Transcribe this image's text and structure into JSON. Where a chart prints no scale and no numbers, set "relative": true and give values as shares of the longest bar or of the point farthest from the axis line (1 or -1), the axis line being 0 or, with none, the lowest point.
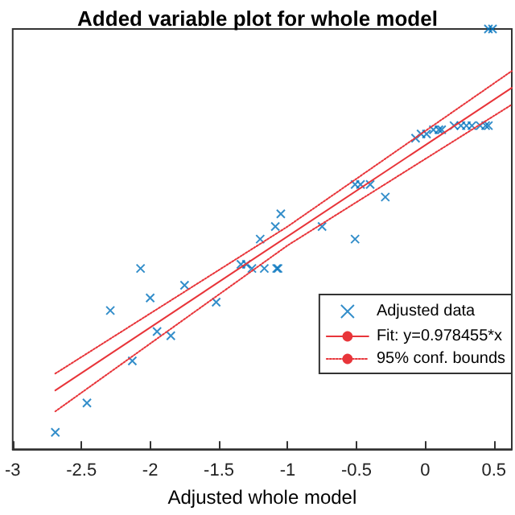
{
  "chart_data": {
    "type": "scatter",
    "title": "Added variable plot for whole model",
    "xlabel": "Adjusted whole model",
    "relative": true,
    "tick_labels": "x",
    "grid": false,
    "legend": "right",
    "xlim": [
      -3,
      0.63
    ],
    "xticks": [
      -3,
      -2.5,
      -2,
      -1.5,
      -1,
      -0.5,
      0,
      0.5
    ],
    "series": [
      {
        "name": "Adjusted data",
        "marker": "cross",
        "color": "#0072bd",
        "x": [
          -2.69,
          -2.46,
          -2.13,
          -2.29,
          -2.07,
          -2.0,
          -1.95,
          -1.85,
          -1.75,
          -1.52,
          -1.34,
          -1.3,
          -1.26,
          -1.17,
          -1.08,
          -1.07,
          -1.2,
          -1.09,
          -0.75,
          -0.51,
          -1.05,
          -0.51,
          -0.47,
          -0.4,
          -0.29,
          -0.07,
          -0.03,
          0.01,
          0.06,
          0.1,
          0.12,
          0.21,
          0.26,
          0.3,
          0.34,
          0.4,
          0.44,
          0.46,
          0.46,
          0.49
        ],
        "values": [
          0.04,
          0.11,
          0.21,
          0.33,
          0.43,
          0.36,
          0.28,
          0.27,
          0.39,
          0.35,
          0.44,
          0.44,
          0.43,
          0.43,
          0.43,
          0.43,
          0.5,
          0.53,
          0.53,
          0.5,
          0.56,
          0.63,
          0.63,
          0.63,
          0.6,
          0.74,
          0.75,
          0.75,
          0.76,
          0.76,
          0.76,
          0.77,
          0.77,
          0.77,
          0.77,
          0.77,
          0.77,
          0.77,
          1.0,
          1.0
        ]
      },
      {
        "name": "Fit: y=0.978455*x",
        "type": "line",
        "line_style": "solid",
        "color": "#e8353a",
        "x": [
          -2.69,
          0.63
        ],
        "values": [
          0.14,
          0.86
        ]
      },
      {
        "name": "95% conf. bounds",
        "type": "line",
        "line_style": "dotted",
        "color": "#e8353a",
        "x": [
          -2.69,
          -1.0,
          0.63
        ],
        "values": [
          0.18,
          0.53,
          0.9
        ]
      },
      {
        "type": "line",
        "line_style": "dotted",
        "color": "#e8353a",
        "x": [
          -2.69,
          -1.0,
          0.63
        ],
        "values": [
          0.09,
          0.485,
          0.82
        ]
      }
    ]
  }
}
